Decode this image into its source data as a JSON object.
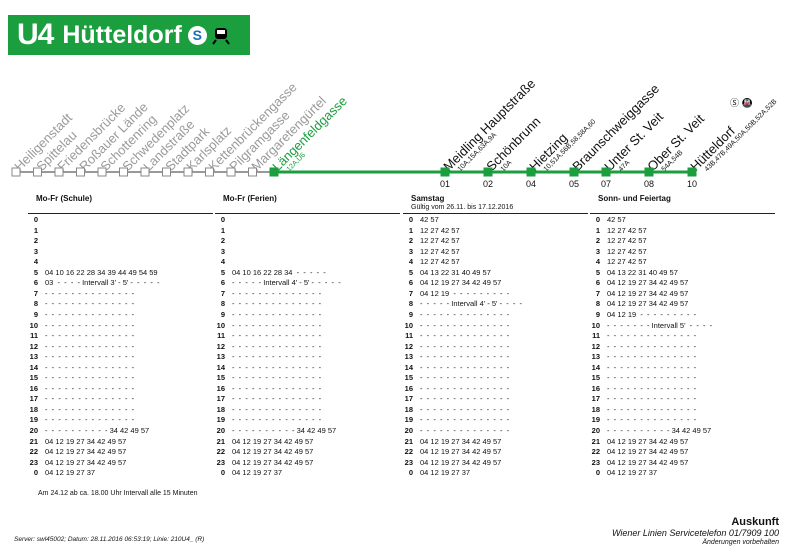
{
  "header": {
    "line": "U4",
    "destination": "Hütteldorf",
    "sbahn_icon": "S",
    "icons": [
      "sbahn-icon",
      "train-icon"
    ],
    "color": "#1a9e3e"
  },
  "stations": [
    {
      "name": "Heiligenstadt",
      "sub": "",
      "state": "past",
      "num": ""
    },
    {
      "name": "Spittelau",
      "sub": "",
      "state": "past",
      "num": ""
    },
    {
      "name": "Friedensbrücke",
      "sub": "",
      "state": "past",
      "num": ""
    },
    {
      "name": "Roßauer Lände",
      "sub": "",
      "state": "past",
      "num": ""
    },
    {
      "name": "Schottenring",
      "sub": "",
      "state": "past",
      "num": ""
    },
    {
      "name": "Schwedenplatz",
      "sub": "",
      "state": "past",
      "num": ""
    },
    {
      "name": "Landstraße",
      "sub": "",
      "state": "past",
      "num": ""
    },
    {
      "name": "Stadtpark",
      "sub": "",
      "state": "past",
      "num": ""
    },
    {
      "name": "Karlsplatz",
      "sub": "",
      "state": "past",
      "num": ""
    },
    {
      "name": "Kettenbrückengasse",
      "sub": "",
      "state": "past",
      "num": ""
    },
    {
      "name": "Pilgramgasse",
      "sub": "",
      "state": "past",
      "num": ""
    },
    {
      "name": "Margaretengürtel",
      "sub": "",
      "state": "past",
      "num": ""
    },
    {
      "name": "Längenfeldgasse",
      "sub": "12A,U6",
      "state": "now",
      "num": ""
    },
    {
      "name": "Meidling Hauptstraße",
      "sub": "10A,15A,63A,9A",
      "state": "next",
      "num": "01"
    },
    {
      "name": "Schönbrunn",
      "sub": "10A",
      "state": "next",
      "num": "02"
    },
    {
      "name": "Hietzing",
      "sub": "10,51A,56B,58,58A,60",
      "state": "next",
      "num": "04"
    },
    {
      "name": "Braunschweiggasse",
      "sub": "",
      "state": "next",
      "num": "05"
    },
    {
      "name": "Unter St. Veit",
      "sub": "47A",
      "state": "next",
      "num": "07"
    },
    {
      "name": "Ober St. Veit",
      "sub": "54A,54B",
      "state": "next",
      "num": "08"
    },
    {
      "name": "Hütteldorf",
      "sub": "43B,47B,49A,50A,50B,52A,52B",
      "state": "next",
      "num": "10"
    }
  ],
  "columns": [
    {
      "title": "Mo-Fr (Schule)",
      "subtitle": "",
      "rows": [
        {
          "h": "0",
          "m": ""
        },
        {
          "h": "1",
          "m": ""
        },
        {
          "h": "2",
          "m": ""
        },
        {
          "h": "3",
          "m": ""
        },
        {
          "h": "4",
          "m": ""
        },
        {
          "h": "5",
          "m": "04 10 16 22 28 34 39 44 49 54 59"
        },
        {
          "h": "6",
          "m": "03  -  -  -  - Intervall 3' - 5' -  -  -  -  -"
        },
        {
          "h": "7",
          "m": "-  -  -  -  -  -  -  -  -  -  -  -  -  -"
        },
        {
          "h": "8",
          "m": "-  -  -  -  -  -  -  -  -  -  -  -  -  -"
        },
        {
          "h": "9",
          "m": "-  -  -  -  -  -  -  -  -  -  -  -  -  -"
        },
        {
          "h": "10",
          "m": "-  -  -  -  -  -  -  -  -  -  -  -  -  -"
        },
        {
          "h": "11",
          "m": "-  -  -  -  -  -  -  -  -  -  -  -  -  -"
        },
        {
          "h": "12",
          "m": "-  -  -  -  -  -  -  -  -  -  -  -  -  -"
        },
        {
          "h": "13",
          "m": "-  -  -  -  -  -  -  -  -  -  -  -  -  -"
        },
        {
          "h": "14",
          "m": "-  -  -  -  -  -  -  -  -  -  -  -  -  -"
        },
        {
          "h": "15",
          "m": "-  -  -  -  -  -  -  -  -  -  -  -  -  -"
        },
        {
          "h": "16",
          "m": "-  -  -  -  -  -  -  -  -  -  -  -  -  -"
        },
        {
          "h": "17",
          "m": "-  -  -  -  -  -  -  -  -  -  -  -  -  -"
        },
        {
          "h": "18",
          "m": "-  -  -  -  -  -  -  -  -  -  -  -  -  -"
        },
        {
          "h": "19",
          "m": "-  -  -  -  -  -  -  -  -  -  -  -  -  -"
        },
        {
          "h": "20",
          "m": "-  -  -  -  -  -  -  -  -  - 34 42 49 57"
        },
        {
          "h": "21",
          "m": "04 12 19 27 34 42 49 57"
        },
        {
          "h": "22",
          "m": "04 12 19 27 34 42 49 57"
        },
        {
          "h": "23",
          "m": "04 12 19 27 34 42 49 57"
        },
        {
          "h": "0",
          "m": "04 12 19 27 37"
        }
      ]
    },
    {
      "title": "Mo-Fr (Ferien)",
      "subtitle": "",
      "rows": [
        {
          "h": "0",
          "m": ""
        },
        {
          "h": "1",
          "m": ""
        },
        {
          "h": "2",
          "m": ""
        },
        {
          "h": "3",
          "m": ""
        },
        {
          "h": "4",
          "m": ""
        },
        {
          "h": "5",
          "m": "04 10 16 22 28 34  -  -  -  -  -"
        },
        {
          "h": "6",
          "m": "-  -  -  -  - Intervall 4' - 5' -  -  -  -  -"
        },
        {
          "h": "7",
          "m": "-  -  -  -  -  -  -  -  -  -  -  -  -  -"
        },
        {
          "h": "8",
          "m": "-  -  -  -  -  -  -  -  -  -  -  -  -  -"
        },
        {
          "h": "9",
          "m": "-  -  -  -  -  -  -  -  -  -  -  -  -  -"
        },
        {
          "h": "10",
          "m": "-  -  -  -  -  -  -  -  -  -  -  -  -  -"
        },
        {
          "h": "11",
          "m": "-  -  -  -  -  -  -  -  -  -  -  -  -  -"
        },
        {
          "h": "12",
          "m": "-  -  -  -  -  -  -  -  -  -  -  -  -  -"
        },
        {
          "h": "13",
          "m": "-  -  -  -  -  -  -  -  -  -  -  -  -  -"
        },
        {
          "h": "14",
          "m": "-  -  -  -  -  -  -  -  -  -  -  -  -  -"
        },
        {
          "h": "15",
          "m": "-  -  -  -  -  -  -  -  -  -  -  -  -  -"
        },
        {
          "h": "16",
          "m": "-  -  -  -  -  -  -  -  -  -  -  -  -  -"
        },
        {
          "h": "17",
          "m": "-  -  -  -  -  -  -  -  -  -  -  -  -  -"
        },
        {
          "h": "18",
          "m": "-  -  -  -  -  -  -  -  -  -  -  -  -  -"
        },
        {
          "h": "19",
          "m": "-  -  -  -  -  -  -  -  -  -  -  -  -  -"
        },
        {
          "h": "20",
          "m": "-  -  -  -  -  -  -  -  -  - 34 42 49 57"
        },
        {
          "h": "21",
          "m": "04 12 19 27 34 42 49 57"
        },
        {
          "h": "22",
          "m": "04 12 19 27 34 42 49 57"
        },
        {
          "h": "23",
          "m": "04 12 19 27 34 42 49 57"
        },
        {
          "h": "0",
          "m": "04 12 19 27 37"
        }
      ]
    },
    {
      "title": "Samstag",
      "subtitle": "Gültig vom 26.11. bis 17.12.2016",
      "rows": [
        {
          "h": "0",
          "m": "42 57"
        },
        {
          "h": "1",
          "m": "12 27 42 57"
        },
        {
          "h": "2",
          "m": "12 27 42 57"
        },
        {
          "h": "3",
          "m": "12 27 42 57"
        },
        {
          "h": "4",
          "m": "12 27 42 57"
        },
        {
          "h": "5",
          "m": "04 13 22 31 40 49 57"
        },
        {
          "h": "6",
          "m": "04 12 19 27 34 42 49 57"
        },
        {
          "h": "7",
          "m": "04 12 19  -  -  -  -  -  -  -  -  -"
        },
        {
          "h": "8",
          "m": "-  -  -  -  - Intervall 4' - 5' -  -  -  -"
        },
        {
          "h": "9",
          "m": "-  -  -  -  -  -  -  -  -  -  -  -  -  -"
        },
        {
          "h": "10",
          "m": "-  -  -  -  -  -  -  -  -  -  -  -  -  -"
        },
        {
          "h": "11",
          "m": "-  -  -  -  -  -  -  -  -  -  -  -  -  -"
        },
        {
          "h": "12",
          "m": "-  -  -  -  -  -  -  -  -  -  -  -  -  -"
        },
        {
          "h": "13",
          "m": "-  -  -  -  -  -  -  -  -  -  -  -  -  -"
        },
        {
          "h": "14",
          "m": "-  -  -  -  -  -  -  -  -  -  -  -  -  -"
        },
        {
          "h": "15",
          "m": "-  -  -  -  -  -  -  -  -  -  -  -  -  -"
        },
        {
          "h": "16",
          "m": "-  -  -  -  -  -  -  -  -  -  -  -  -  -"
        },
        {
          "h": "17",
          "m": "-  -  -  -  -  -  -  -  -  -  -  -  -  -"
        },
        {
          "h": "18",
          "m": "-  -  -  -  -  -  -  -  -  -  -  -  -  -"
        },
        {
          "h": "19",
          "m": "-  -  -  -  -  -  -  -  -  -  -  -  -  -"
        },
        {
          "h": "20",
          "m": "-  -  -  -  -  -  -  -  -  -  -  -  -  -"
        },
        {
          "h": "21",
          "m": "04 12 19 27 34 42 49 57"
        },
        {
          "h": "22",
          "m": "04 12 19 27 34 42 49 57"
        },
        {
          "h": "23",
          "m": "04 12 19 27 34 42 49 57"
        },
        {
          "h": "0",
          "m": "04 12 19 27 37"
        }
      ]
    },
    {
      "title": "Sonn- und Feiertag",
      "subtitle": "",
      "rows": [
        {
          "h": "0",
          "m": "42 57"
        },
        {
          "h": "1",
          "m": "12 27 42 57"
        },
        {
          "h": "2",
          "m": "12 27 42 57"
        },
        {
          "h": "3",
          "m": "12 27 42 57"
        },
        {
          "h": "4",
          "m": "12 27 42 57"
        },
        {
          "h": "5",
          "m": "04 13 22 31 40 49 57"
        },
        {
          "h": "6",
          "m": "04 12 19 27 34 42 49 57"
        },
        {
          "h": "7",
          "m": "04 12 19 27 34 42 49 57"
        },
        {
          "h": "8",
          "m": "04 12 19 27 34 42 49 57"
        },
        {
          "h": "9",
          "m": "04 12 19  -  -  -  -  -  -  -  -  -"
        },
        {
          "h": "10",
          "m": "-  -  -  -  -  -  - Intervall 5'  -  -  -  -"
        },
        {
          "h": "11",
          "m": "-  -  -  -  -  -  -  -  -  -  -  -  -  -"
        },
        {
          "h": "12",
          "m": "-  -  -  -  -  -  -  -  -  -  -  -  -  -"
        },
        {
          "h": "13",
          "m": "-  -  -  -  -  -  -  -  -  -  -  -  -  -"
        },
        {
          "h": "14",
          "m": "-  -  -  -  -  -  -  -  -  -  -  -  -  -"
        },
        {
          "h": "15",
          "m": "-  -  -  -  -  -  -  -  -  -  -  -  -  -"
        },
        {
          "h": "16",
          "m": "-  -  -  -  -  -  -  -  -  -  -  -  -  -"
        },
        {
          "h": "17",
          "m": "-  -  -  -  -  -  -  -  -  -  -  -  -  -"
        },
        {
          "h": "18",
          "m": "-  -  -  -  -  -  -  -  -  -  -  -  -  -"
        },
        {
          "h": "19",
          "m": "-  -  -  -  -  -  -  -  -  -  -  -  -  -"
        },
        {
          "h": "20",
          "m": "-  -  -  -  -  -  -  -  -  - 34 42 49 57"
        },
        {
          "h": "21",
          "m": "04 12 19 27 34 42 49 57"
        },
        {
          "h": "22",
          "m": "04 12 19 27 34 42 49 57"
        },
        {
          "h": "23",
          "m": "04 12 19 27 34 42 49 57"
        },
        {
          "h": "0",
          "m": "04 12 19 27 37"
        }
      ]
    }
  ],
  "footer": {
    "note": "Am 24.12 ab ca. 18.00 Uhr Intervall alle 15 Minuten",
    "server": "Server: swl45002;  Datum: 28.11.2016 06:53:19;  Linie: 210U4_  (R)",
    "auskunft_title": "Auskunft",
    "auskunft_phone": "Wiener Linien Servicetelefon 01/7909 100",
    "auskunft_note": "Änderungen vorbehalten"
  }
}
